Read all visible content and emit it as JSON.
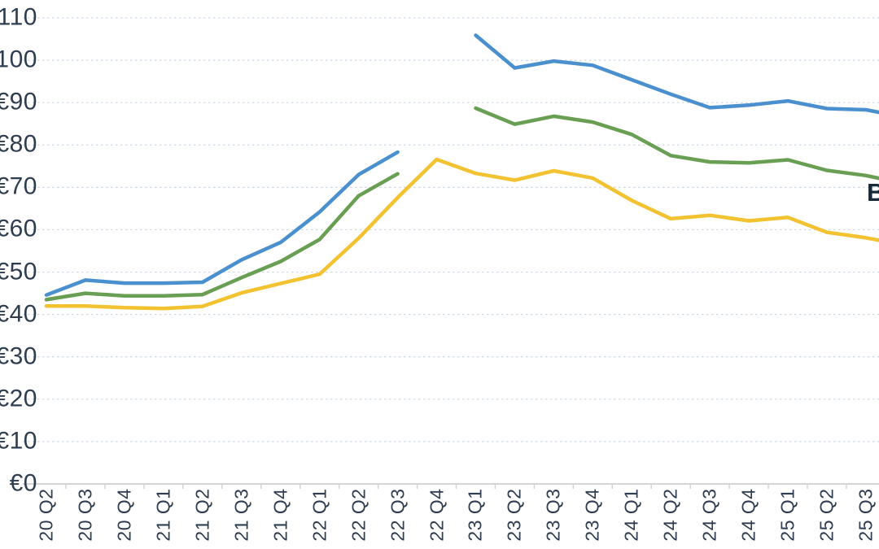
{
  "figure": {
    "right_edge_label": "B"
  },
  "chart_data": {
    "type": "line",
    "title": "",
    "x_categories": [
      "20 Q2",
      "20 Q3",
      "20 Q4",
      "21 Q1",
      "21 Q2",
      "21 Q3",
      "21 Q4",
      "22 Q1",
      "22 Q2",
      "22 Q3",
      "22 Q4",
      "23 Q1",
      "23 Q2",
      "23 Q3",
      "23 Q4",
      "24 Q1",
      "24 Q2",
      "24 Q3",
      "24 Q4",
      "25 Q1",
      "25 Q2",
      "25 Q3"
    ],
    "series": [
      {
        "name": "blue",
        "color": "#4a90cf",
        "values": [
          44.6,
          48.1,
          47.4,
          47.4,
          47.6,
          52.9,
          57.0,
          64.2,
          73.0,
          78.3,
          null,
          105.9,
          98.2,
          99.8,
          98.8,
          95.4,
          92.0,
          88.8,
          89.4,
          90.4,
          88.6,
          88.3
        ],
        "edge_extension_value": 87.5
      },
      {
        "name": "green",
        "color": "#699f52",
        "values": [
          43.5,
          45.0,
          44.4,
          44.4,
          44.7,
          48.7,
          52.5,
          57.7,
          68.0,
          73.2,
          null,
          88.7,
          84.9,
          86.8,
          85.4,
          82.5,
          77.5,
          76.0,
          75.8,
          76.5,
          74.0,
          72.8
        ],
        "edge_extension_value": 71.9
      },
      {
        "name": "yellow",
        "color": "#f2c230",
        "values": [
          42.0,
          42.0,
          41.6,
          41.4,
          41.9,
          45.1,
          47.3,
          49.5,
          58.0,
          67.6,
          76.6,
          73.3,
          71.7,
          73.9,
          72.2,
          66.9,
          62.6,
          63.4,
          62.1,
          62.9,
          59.4,
          58.1
        ],
        "edge_extension_value": 57.3
      }
    ],
    "y_ticks": [
      "€0",
      "€10",
      "€20",
      "€30",
      "€40",
      "€50",
      "€60",
      "€70",
      "€80",
      "€90",
      "€100",
      "€110"
    ],
    "y_tick_values": [
      0,
      10,
      20,
      30,
      40,
      50,
      60,
      70,
      80,
      90,
      100,
      110
    ],
    "ylim": [
      0,
      110
    ],
    "currency_prefix": "€",
    "grid": "horizontal dashed, light blue-grey",
    "legend_position": "cut off at right image edge (only letter B visible)",
    "gap_note": "blue and green series have no data point at 22 Q4; yellow is continuous"
  },
  "colors": {
    "text": "#2e3d4f",
    "grid": "#ccd7e3",
    "axis": "#d4d4d4",
    "background": "#ffffff"
  }
}
